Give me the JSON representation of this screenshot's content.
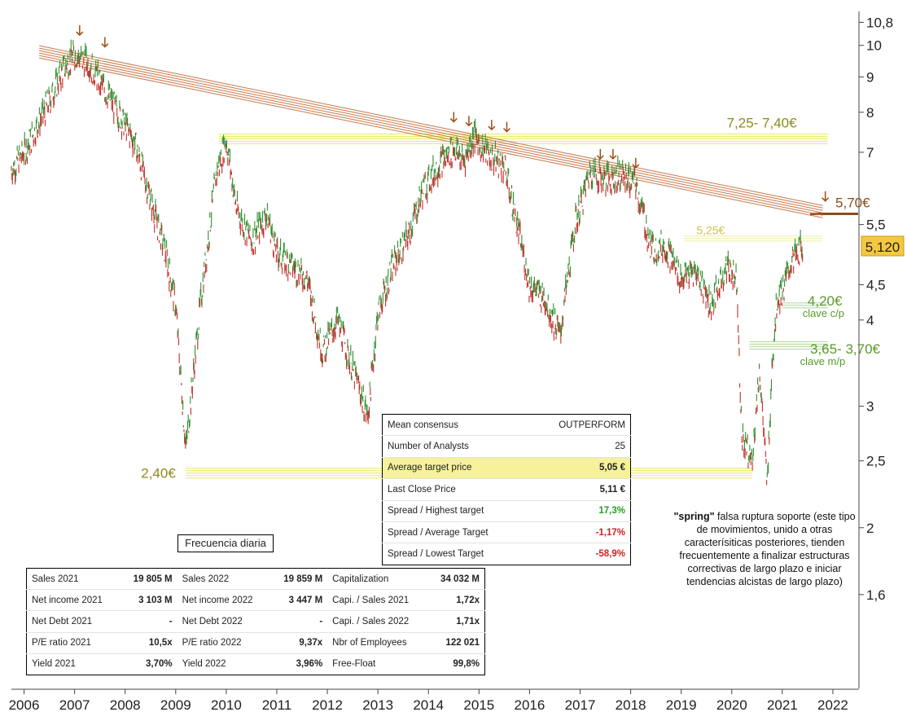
{
  "chart_data": {
    "type": "line",
    "title": "",
    "xlabel": "",
    "ylabel": "",
    "scale": "log",
    "xlim": [
      2005.75,
      2022.5
    ],
    "ylim": [
      1.17,
      11.2
    ],
    "x_ticks": [
      "2006",
      "2007",
      "2008",
      "2009",
      "2010",
      "2011",
      "2012",
      "2013",
      "2014",
      "2015",
      "2016",
      "2017",
      "2018",
      "2019",
      "2020",
      "2021",
      "2022"
    ],
    "y_ticks": [
      {
        "label": "10,8",
        "value": 10.8
      },
      {
        "label": "10",
        "value": 10
      },
      {
        "label": "9",
        "value": 9
      },
      {
        "label": "8",
        "value": 8
      },
      {
        "label": "7",
        "value": 7
      },
      {
        "label": "5,5",
        "value": 5.5
      },
      {
        "label": "4,5",
        "value": 4.5
      },
      {
        "label": "4",
        "value": 4
      },
      {
        "label": "3",
        "value": 3
      },
      {
        "label": "2,5",
        "value": 2.5
      },
      {
        "label": "2",
        "value": 2
      },
      {
        "label": "1,6",
        "value": 1.6
      }
    ],
    "last_price": {
      "label": "5,120",
      "value": 5.12
    },
    "series": [
      {
        "x": [
          2005.75,
          2006.0,
          2006.4,
          2006.8,
          2007.0,
          2007.3,
          2007.6,
          2007.9,
          2008.2,
          2008.5,
          2008.8,
          2009.0,
          2009.2,
          2009.5,
          2009.8,
          2010.0,
          2010.2,
          2010.5,
          2010.8,
          2011.0,
          2011.3,
          2011.6,
          2011.9,
          2012.2,
          2012.5,
          2012.8,
          2013.0,
          2013.3,
          2013.6,
          2013.9,
          2014.2,
          2014.5,
          2014.7,
          2014.9,
          2015.2,
          2015.5,
          2015.8,
          2016.0,
          2016.3,
          2016.6,
          2016.9,
          2017.2,
          2017.5,
          2017.8,
          2018.1,
          2018.4,
          2018.7,
          2019.0,
          2019.3,
          2019.6,
          2019.9,
          2020.1,
          2020.2,
          2020.4,
          2020.55,
          2020.7,
          2020.8,
          2020.9,
          2021.0,
          2021.2,
          2021.4
        ],
        "y": [
          6.6,
          7.0,
          8.0,
          9.3,
          9.7,
          9.4,
          8.6,
          7.9,
          7.2,
          6.0,
          5.0,
          4.2,
          2.6,
          4.3,
          6.5,
          7.3,
          5.8,
          5.2,
          5.7,
          5.0,
          4.8,
          4.6,
          3.6,
          4.0,
          3.4,
          2.9,
          4.1,
          4.8,
          5.3,
          6.2,
          6.7,
          7.1,
          6.8,
          7.4,
          6.9,
          6.7,
          5.3,
          4.5,
          4.3,
          3.8,
          5.5,
          6.6,
          6.4,
          6.5,
          6.3,
          5.1,
          5.1,
          4.6,
          4.7,
          4.2,
          4.8,
          4.6,
          2.7,
          2.5,
          3.4,
          2.3,
          3.5,
          4.3,
          4.4,
          4.9,
          5.12
        ]
      }
    ],
    "resistance_trendline": {
      "from": {
        "x": 2006.3,
        "y": 9.8
      },
      "to": {
        "x": 2021.8,
        "y": 5.75
      }
    },
    "annotations": [
      {
        "text": "7,25- 7,40€",
        "y": 7.32
      },
      {
        "text": "5,70€",
        "y": 5.7
      },
      {
        "text": "5,25€",
        "y": 5.25
      },
      {
        "text": "4,20€",
        "y": 4.2
      },
      {
        "text": "clave c/p",
        "y": 4.2
      },
      {
        "text": "3,65- 3,70€",
        "y": 3.675
      },
      {
        "text": "clave m/p",
        "y": 3.675
      },
      {
        "text": "2,40€",
        "y": 2.4
      }
    ],
    "colors": {
      "price_up": "#2f8f2f",
      "price_down": "#c0302a",
      "trendline": "#c8784a",
      "yellow_band": "#e9eb6a",
      "pale_band": "#f1f3b4",
      "green_band": "#b6d9a6",
      "brown_line": "#8a4d1e",
      "label_olive": "#8c8a1c",
      "label_yellow": "#d3c441",
      "label_green": "#5a9a2a",
      "arrow": "#9b4f14",
      "last_price_badge": "#f5c843"
    }
  },
  "consensus_table": {
    "rows": [
      {
        "label": "Mean consensus",
        "value": "OUTPERFORM"
      },
      {
        "label": "Number of Analysts",
        "value": "25"
      },
      {
        "label": "Average target price",
        "value": "5,05 €"
      },
      {
        "label": "Last Close Price",
        "value": "5,11 €"
      },
      {
        "label": "Spread / Highest target",
        "value": "17,3%"
      },
      {
        "label": "Spread / Average Target",
        "value": "-1,17%"
      },
      {
        "label": "Spread / Lowest Target",
        "value": "-58,9%"
      }
    ]
  },
  "frequency_label": "Frecuencia diaria",
  "fundamentals_table": {
    "rows": [
      [
        "Sales 2021",
        "19 805 M",
        "Sales 2022",
        "19 859 M",
        "Capitalization",
        "34 032 M"
      ],
      [
        "Net income 2021",
        "3 103 M",
        "Net income 2022",
        "3 447 M",
        "Capi. / Sales 2021",
        "1,72x"
      ],
      [
        "Net Debt 2021",
        "-",
        "Net Debt 2022",
        "-",
        "Capi. / Sales 2022",
        "1,71x"
      ],
      [
        "P/E ratio 2021",
        "10,5x",
        "P/E ratio 2022",
        "9,37x",
        "Nbr of Employees",
        "122 021"
      ],
      [
        "Yield 2021",
        "3,70%",
        "Yield 2022",
        "3,96%",
        "Free-Float",
        "99,8%"
      ]
    ]
  },
  "spring_note": {
    "bold": "\"spring\"",
    "text": " falsa ruptura soporte (este tipo de movimientos, unido a otras caracterísiticas posteriores, tienden frecuentemente a finalizar estructuras correctivas de largo plazo e iniciar tendencias alcistas de largo plazo)"
  }
}
